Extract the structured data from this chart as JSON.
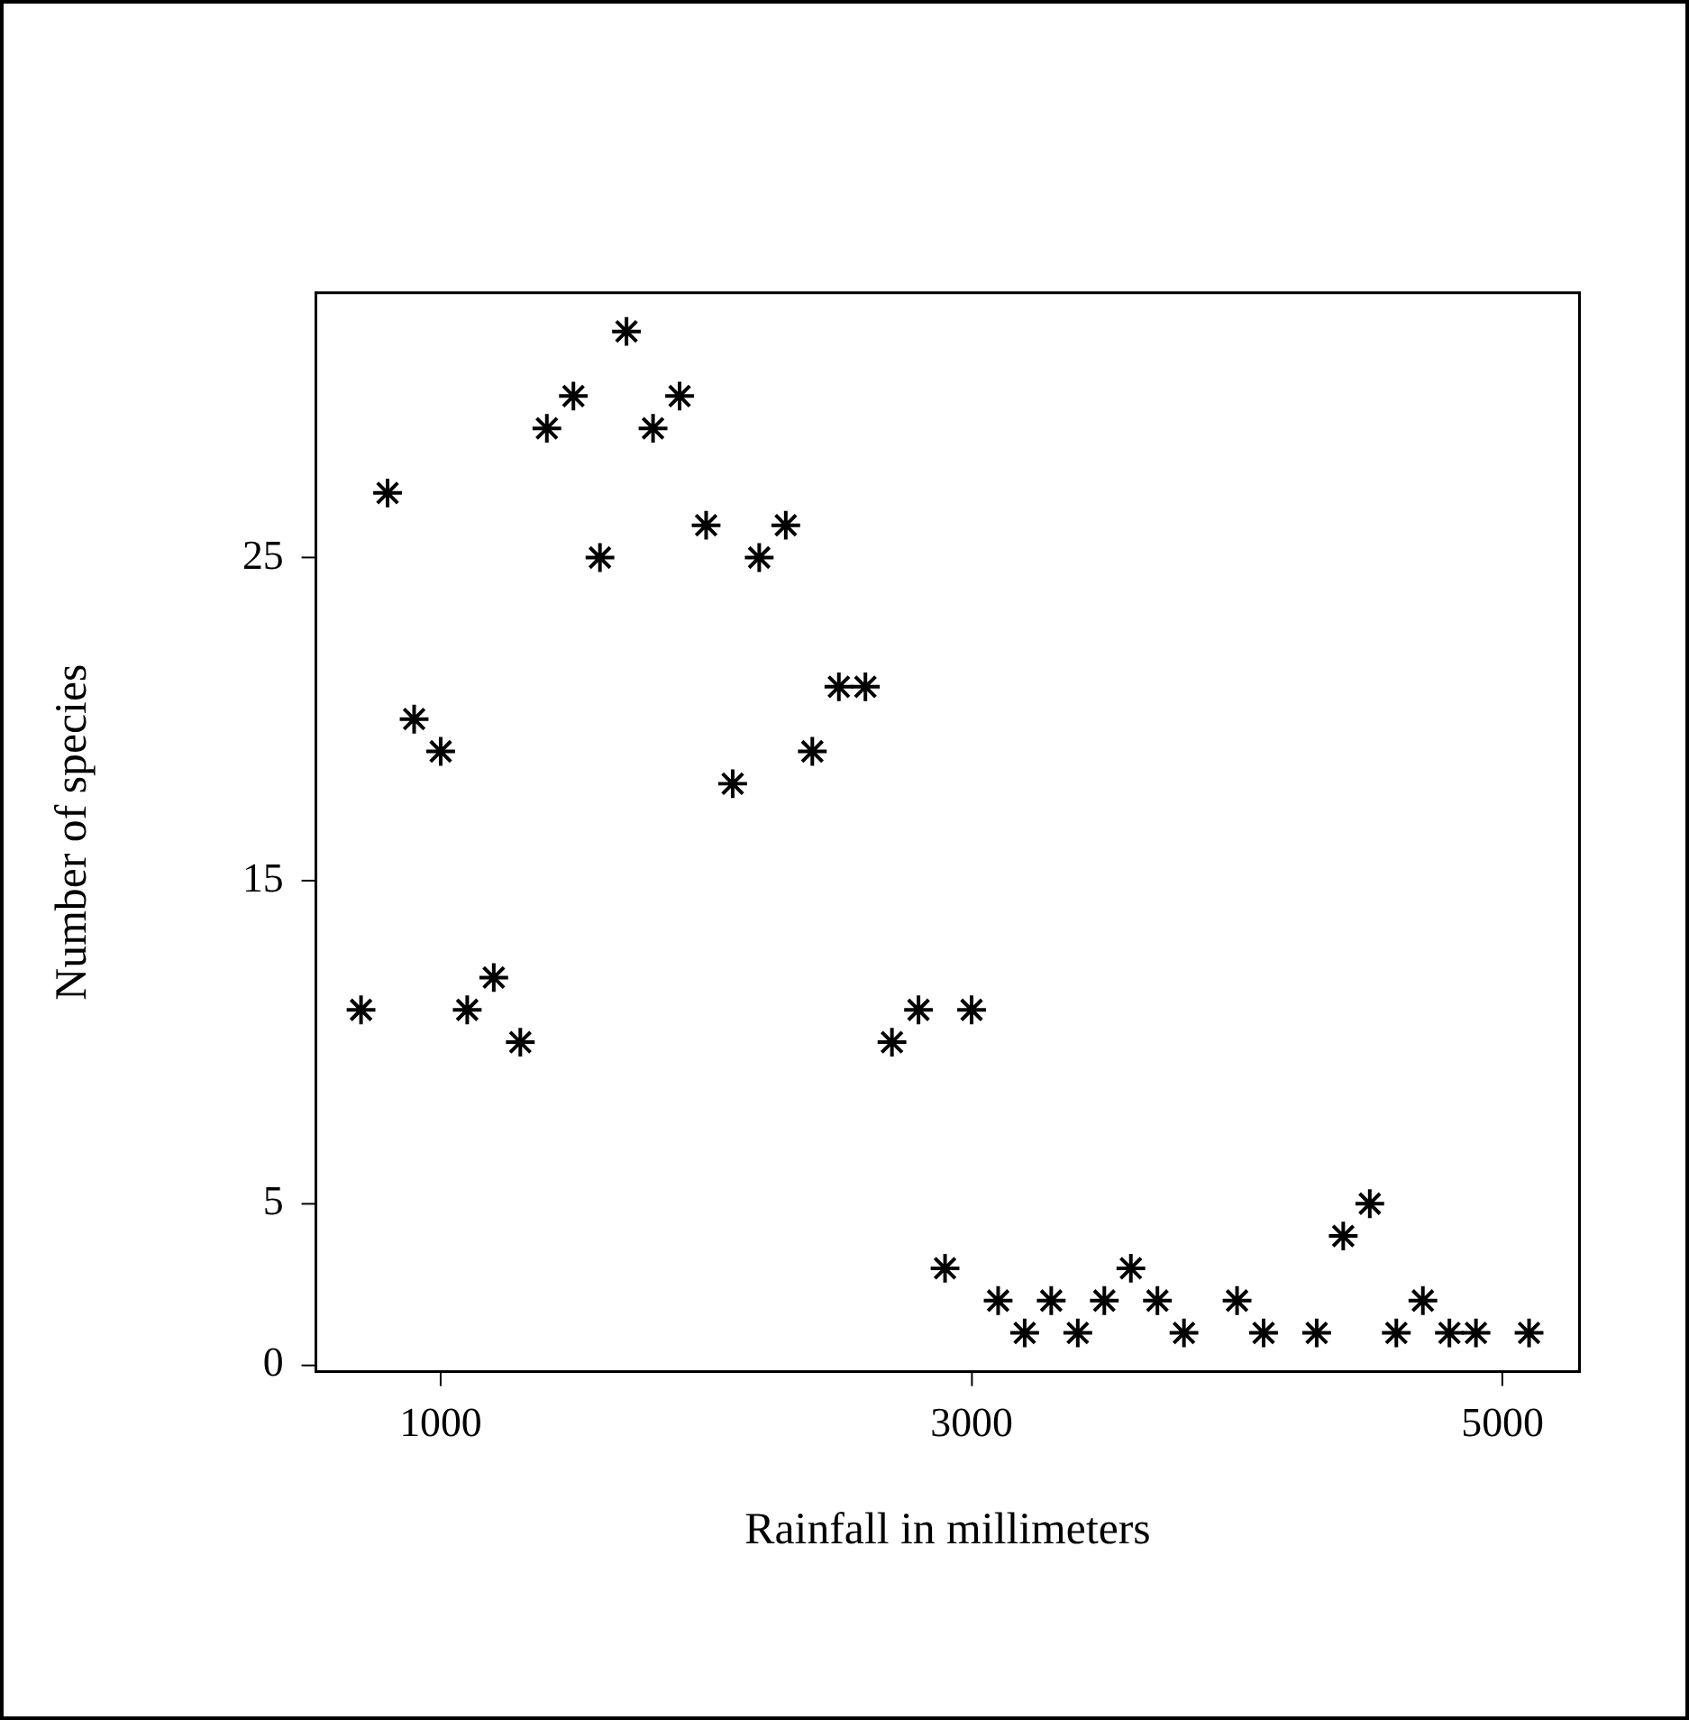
{
  "chart_data": {
    "type": "scatter",
    "xlabel": "Rainfall in millimeters",
    "ylabel": "Number of species",
    "x": [
      700,
      800,
      900,
      1000,
      1100,
      1200,
      1300,
      1400,
      1500,
      1600,
      1700,
      1800,
      1900,
      2000,
      2100,
      2200,
      2300,
      2400,
      2500,
      2600,
      2700,
      2800,
      2900,
      3000,
      3100,
      3200,
      3300,
      3400,
      3500,
      3600,
      3700,
      3800,
      4000,
      4100,
      4300,
      4400,
      4500,
      4600,
      4700,
      4800,
      4900,
      5100
    ],
    "series": [
      {
        "color": "#000000",
        "values": [
          11,
          27,
          20,
          19,
          11,
          12,
          10,
          29,
          30,
          25,
          32,
          29,
          30,
          26,
          18,
          25,
          26,
          19,
          21,
          21,
          10,
          11,
          3,
          11,
          2,
          1,
          2,
          1,
          2,
          3,
          2,
          1,
          2,
          1,
          1,
          4,
          5,
          1,
          2,
          1,
          1,
          1
        ]
      }
    ],
    "xlim": [
      530,
      5290
    ],
    "xticks": [
      1000,
      3000,
      5000
    ],
    "ylim": [
      -0.2,
      33.2
    ],
    "yticks": [
      0,
      5,
      15,
      25
    ],
    "marker": "cross",
    "grid": false,
    "legend": false
  }
}
